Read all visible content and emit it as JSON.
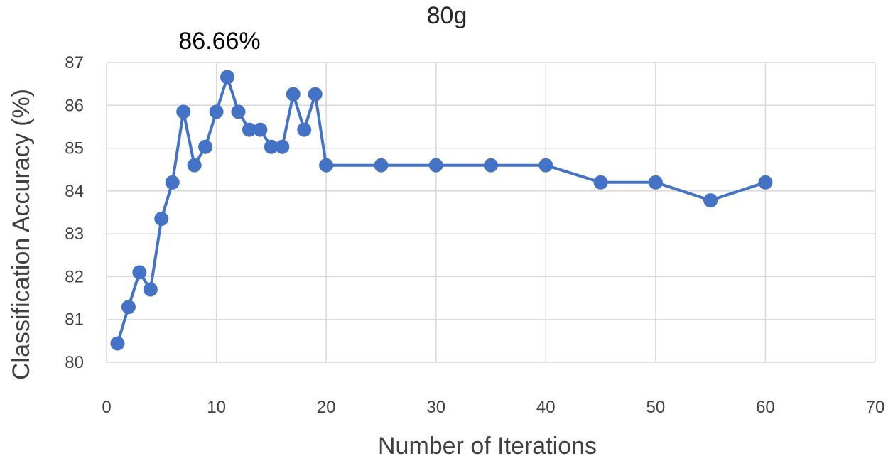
{
  "chart_data": {
    "type": "line",
    "title": "80g",
    "annotation": "86.66%",
    "xlabel": "Number of Iterations",
    "ylabel": "Classification Accuracy (%)",
    "xlim": [
      0,
      70
    ],
    "ylim": [
      80,
      87
    ],
    "x_ticks": [
      0,
      10,
      20,
      30,
      40,
      50,
      60,
      70
    ],
    "y_ticks": [
      80,
      81,
      82,
      83,
      84,
      85,
      86,
      87
    ],
    "x_tick_labels": [
      "0",
      "10",
      "20",
      "30",
      "40",
      "50",
      "60",
      "70"
    ],
    "y_tick_labels": [
      "80",
      "81",
      "82",
      "83",
      "84",
      "85",
      "86",
      "87"
    ],
    "grid": true,
    "colors": {
      "series": "#4472c4",
      "grid": "#d9d9d9"
    },
    "series": [
      {
        "x": [
          1,
          2,
          3,
          4,
          5,
          6,
          7,
          8,
          9,
          10,
          11,
          12,
          13,
          14,
          15,
          16,
          17,
          18,
          19,
          20,
          25,
          30,
          35,
          40,
          45,
          50,
          55,
          60
        ],
        "values": [
          80.44,
          81.29,
          82.1,
          81.7,
          83.35,
          84.2,
          85.85,
          84.6,
          85.03,
          85.85,
          86.66,
          85.85,
          85.43,
          85.43,
          85.03,
          85.03,
          86.26,
          85.43,
          86.26,
          84.6,
          84.6,
          84.6,
          84.6,
          84.6,
          84.2,
          84.2,
          83.78,
          84.2
        ]
      }
    ]
  }
}
